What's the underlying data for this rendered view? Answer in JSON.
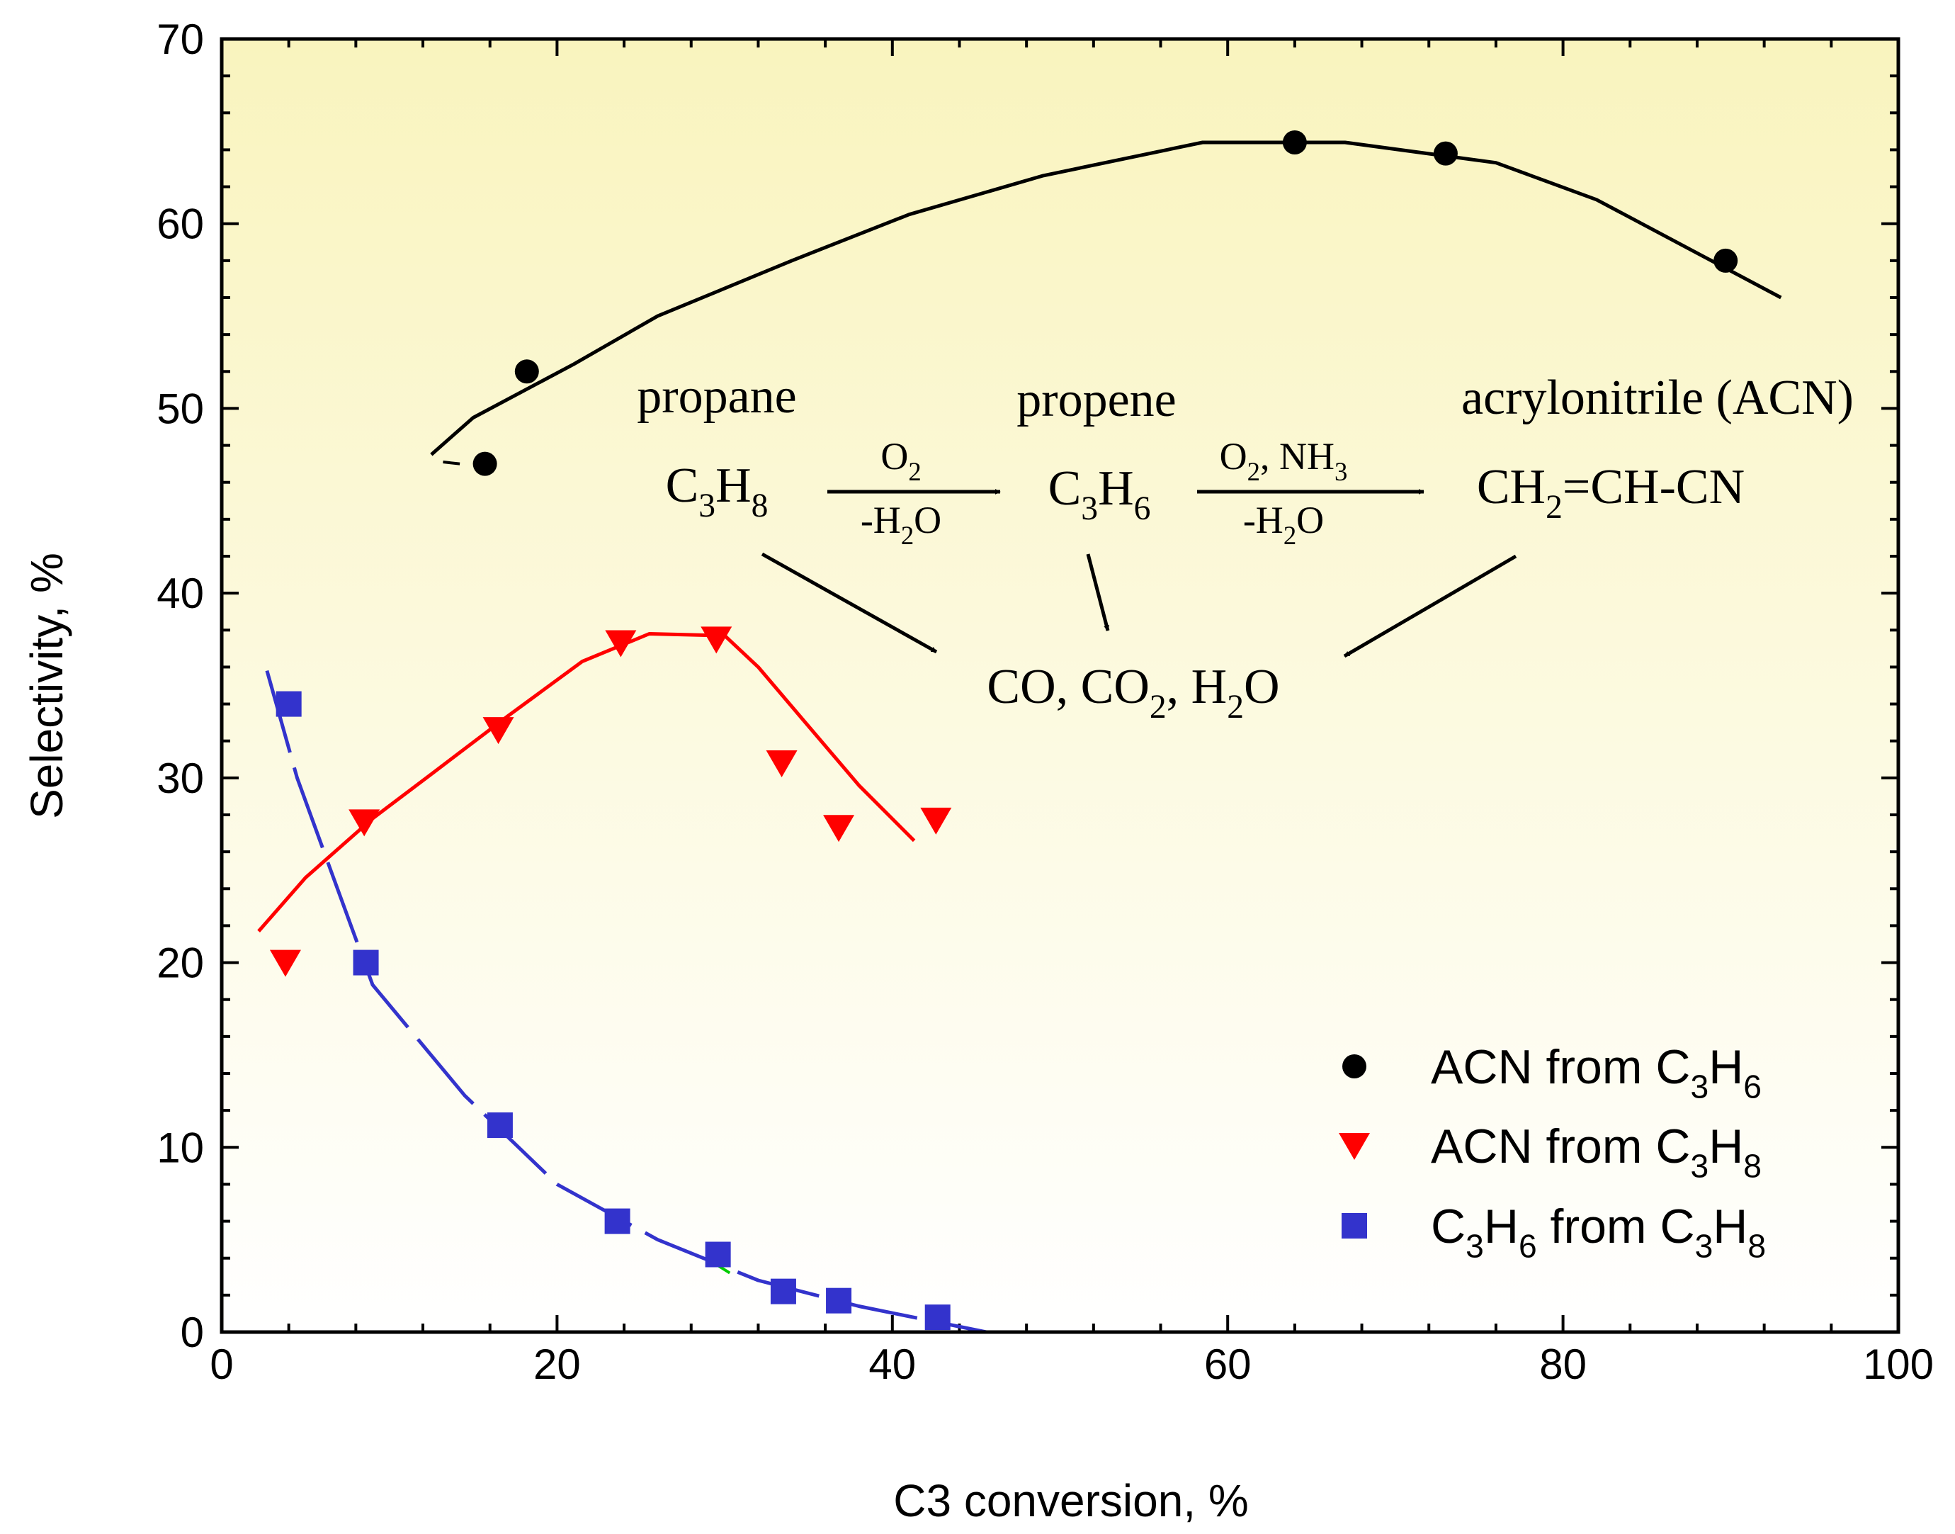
{
  "chart_data": {
    "type": "scatter",
    "xlabel": "C3 conversion, %",
    "ylabel": "Selectivity, %",
    "xlim": [
      0,
      100
    ],
    "ylim": [
      0,
      70
    ],
    "x_ticks": [
      "0",
      "20",
      "40",
      "60",
      "80",
      "100"
    ],
    "y_ticks": [
      "0",
      "10",
      "20",
      "30",
      "40",
      "50",
      "60",
      "70"
    ],
    "x_tick_values": [
      0,
      20,
      40,
      60,
      80,
      100
    ],
    "y_tick_values": [
      0,
      10,
      20,
      30,
      40,
      50,
      60,
      70
    ],
    "x_minor_step": 4,
    "y_minor_step": 2,
    "grid": false,
    "background": "yellow-to-white vertical gradient",
    "colors": {
      "bg_top": "#f9f4be",
      "bg_bottom": "#ffffff",
      "axis": "#000000",
      "ACN from C3H6": "#000000",
      "ACN from C3H8": "#ff0000",
      "C3H6 from C3H8": "#3333cc",
      "green_fragment": "#00cc00"
    },
    "legend": {
      "position": "bottom-right",
      "entries": [
        {
          "series": "ACN from C3H6",
          "marker": "circle",
          "parts": [
            [
              "ACN from C",
              "normal"
            ],
            [
              "3",
              "sub"
            ],
            [
              "H",
              "normal"
            ],
            [
              "6",
              "sub"
            ]
          ]
        },
        {
          "series": "ACN from C3H8",
          "marker": "triangle-down",
          "parts": [
            [
              "ACN from C",
              "normal"
            ],
            [
              "3",
              "sub"
            ],
            [
              "H",
              "normal"
            ],
            [
              "8",
              "sub"
            ]
          ]
        },
        {
          "series": "C3H6 from C3H8",
          "marker": "square",
          "parts": [
            [
              "C",
              "normal"
            ],
            [
              "3",
              "sub"
            ],
            [
              "H",
              "normal"
            ],
            [
              "6",
              "sub"
            ],
            [
              " from C",
              "normal"
            ],
            [
              "3",
              "sub"
            ],
            [
              "H",
              "normal"
            ],
            [
              "8",
              "sub"
            ]
          ]
        }
      ]
    },
    "series": [
      {
        "name": "ACN from C3H6",
        "marker": "circle",
        "points": [
          [
            15.7,
            47.0
          ],
          [
            18.2,
            52.0
          ],
          [
            64.0,
            64.4
          ],
          [
            73.0,
            63.8
          ],
          [
            89.7,
            58.0
          ]
        ],
        "fit_line": [
          [
            12.5,
            47.5
          ],
          [
            15.0,
            49.5
          ],
          [
            21.0,
            52.4
          ],
          [
            26.0,
            55.0
          ],
          [
            34.0,
            58.0
          ],
          [
            41.0,
            60.5
          ],
          [
            49.0,
            62.6
          ],
          [
            58.5,
            64.4
          ],
          [
            67.0,
            64.4
          ],
          [
            76.0,
            63.3
          ],
          [
            82.0,
            61.3
          ],
          [
            93.0,
            56.0
          ]
        ],
        "fit_style": "solid"
      },
      {
        "name": "ACN from C3H8",
        "marker": "triangle-down",
        "points": [
          [
            3.8,
            20.0
          ],
          [
            8.5,
            27.6
          ],
          [
            16.5,
            32.6
          ],
          [
            23.8,
            37.3
          ],
          [
            29.5,
            37.5
          ],
          [
            33.4,
            30.8
          ],
          [
            36.8,
            27.3
          ],
          [
            42.6,
            27.7
          ]
        ],
        "fit_line": [
          [
            2.2,
            21.7
          ],
          [
            5.0,
            24.6
          ],
          [
            9.0,
            27.8
          ],
          [
            12.5,
            30.2
          ],
          [
            17.0,
            33.3
          ],
          [
            21.5,
            36.3
          ],
          [
            25.5,
            37.8
          ],
          [
            30.0,
            37.7
          ],
          [
            32.0,
            36.0
          ],
          [
            35.0,
            32.8
          ],
          [
            38.0,
            29.6
          ],
          [
            41.3,
            26.6
          ]
        ],
        "fit_style": "solid"
      },
      {
        "name": "C3H6 from C3H8",
        "marker": "square",
        "points": [
          [
            4.0,
            34.0
          ],
          [
            8.6,
            20.0
          ],
          [
            16.6,
            11.2
          ],
          [
            23.6,
            6.0
          ],
          [
            29.6,
            4.2
          ],
          [
            33.5,
            2.2
          ],
          [
            36.8,
            1.7
          ],
          [
            42.7,
            0.8
          ]
        ],
        "fit_line": [
          [
            2.7,
            35.8
          ],
          [
            4.5,
            30.0
          ],
          [
            6.5,
            25.0
          ],
          [
            9.0,
            18.8
          ],
          [
            14.5,
            12.8
          ],
          [
            20.0,
            8.0
          ],
          [
            26.0,
            5.0
          ],
          [
            32.0,
            2.8
          ],
          [
            38.0,
            1.4
          ],
          [
            45.6,
            0.0
          ]
        ],
        "fit_style": "dashed"
      }
    ],
    "annotations": {
      "label_propane": "propane",
      "label_propene": "propene",
      "label_acrylonitrile": "acrylonitrile (ACN)",
      "formula_propane": [
        [
          "C",
          "normal"
        ],
        [
          "3",
          "sub"
        ],
        [
          "H",
          "normal"
        ],
        [
          "8",
          "sub"
        ]
      ],
      "formula_propene": [
        [
          "C",
          "normal"
        ],
        [
          "3",
          "sub"
        ],
        [
          "H",
          "normal"
        ],
        [
          "6",
          "sub"
        ]
      ],
      "formula_acn": [
        [
          "CH",
          "normal"
        ],
        [
          "2",
          "sub"
        ],
        [
          "=CH-CN",
          "normal"
        ]
      ],
      "arrow1_top": [
        [
          "O",
          "normal"
        ],
        [
          "2",
          "sub"
        ]
      ],
      "arrow1_bottom": [
        [
          "-H",
          "normal"
        ],
        [
          "2",
          "sub"
        ],
        [
          "O",
          "normal"
        ]
      ],
      "arrow2_top": [
        [
          "O",
          "normal"
        ],
        [
          "2",
          "sub"
        ],
        [
          ", NH",
          "normal"
        ],
        [
          "3",
          "sub"
        ]
      ],
      "arrow2_bottom": [
        [
          "-H",
          "normal"
        ],
        [
          "2",
          "sub"
        ],
        [
          "O",
          "normal"
        ]
      ],
      "products": [
        [
          "CO, CO",
          "normal"
        ],
        [
          "2",
          "sub"
        ],
        [
          ", H",
          "normal"
        ],
        [
          "2",
          "sub"
        ],
        [
          "O",
          "normal"
        ]
      ]
    }
  }
}
